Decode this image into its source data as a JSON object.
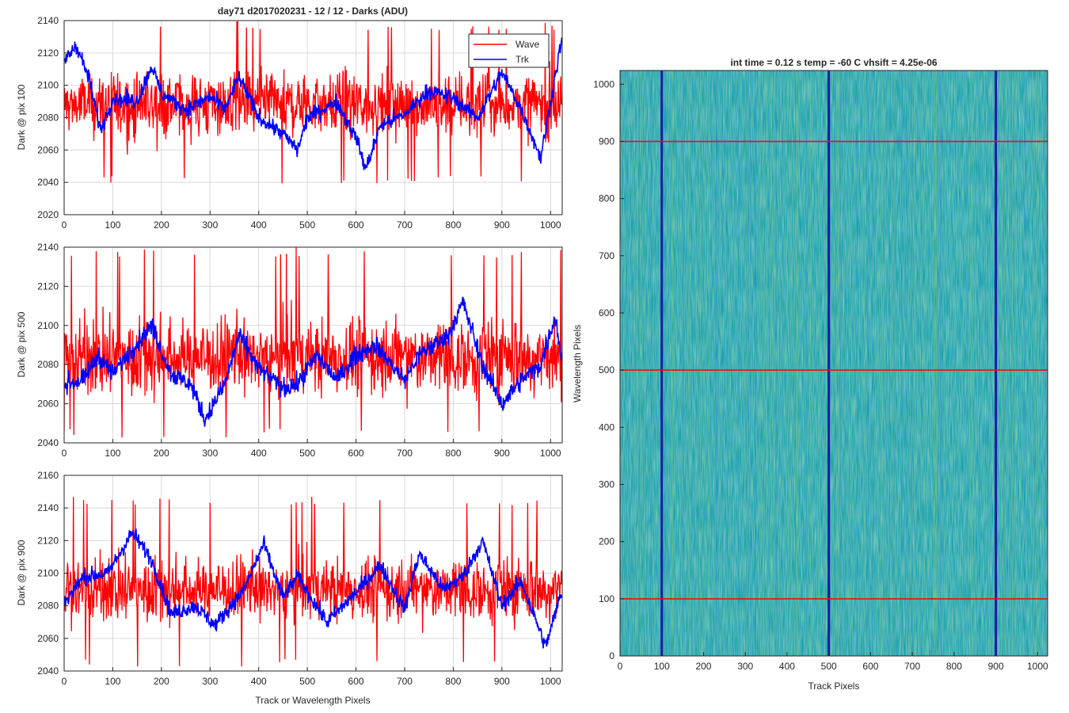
{
  "figure": {
    "title": "day71 d2017020231 - 12 / 12 - Darks (ADU)"
  },
  "colors": {
    "wave": "#ff0000",
    "trk": "#0000ff",
    "grid": "#d9d9d9",
    "axis": "#262626",
    "heatmap_base": "#1aa3a8",
    "heatmap_low": "#1f6fd6",
    "heatmap_high": "#8ecf55",
    "dark_column": "#1a1aa6"
  },
  "chart_data": [
    {
      "type": "line",
      "ylabel": "Dark @ pix 100",
      "xlabel": "",
      "xlim": [
        0,
        1024
      ],
      "ylim": [
        2020,
        2140
      ],
      "xticks": [
        0,
        100,
        200,
        300,
        400,
        500,
        600,
        700,
        800,
        900,
        1000
      ],
      "yticks": [
        2020,
        2040,
        2060,
        2080,
        2100,
        2120,
        2140
      ],
      "grid": true,
      "legend": {
        "position": "top-right",
        "entries": [
          "Wave",
          "Trk"
        ]
      },
      "series": [
        {
          "name": "Wave",
          "color": "#ff0000",
          "n_points": 1024,
          "mean": 2088,
          "spread": 14,
          "min": 2038,
          "max": 2140
        },
        {
          "name": "Trk",
          "color": "#0000ff",
          "n_points": 1024,
          "mean": 2090,
          "spread": 12,
          "anchors": [
            [
              0,
              2115
            ],
            [
              25,
              2125
            ],
            [
              50,
              2105
            ],
            [
              75,
              2072
            ],
            [
              100,
              2092
            ],
            [
              150,
              2090
            ],
            [
              180,
              2112
            ],
            [
              200,
              2095
            ],
            [
              250,
              2085
            ],
            [
              300,
              2093
            ],
            [
              330,
              2085
            ],
            [
              360,
              2105
            ],
            [
              400,
              2080
            ],
            [
              450,
              2070
            ],
            [
              480,
              2060
            ],
            [
              500,
              2080
            ],
            [
              560,
              2090
            ],
            [
              600,
              2068
            ],
            [
              620,
              2048
            ],
            [
              650,
              2075
            ],
            [
              700,
              2082
            ],
            [
              750,
              2097
            ],
            [
              800,
              2092
            ],
            [
              850,
              2080
            ],
            [
              900,
              2108
            ],
            [
              940,
              2085
            ],
            [
              980,
              2055
            ],
            [
              1000,
              2090
            ],
            [
              1024,
              2130
            ]
          ]
        }
      ]
    },
    {
      "type": "line",
      "ylabel": "Dark @ pix 500",
      "xlabel": "",
      "xlim": [
        0,
        1024
      ],
      "ylim": [
        2040,
        2140
      ],
      "xticks": [
        0,
        100,
        200,
        300,
        400,
        500,
        600,
        700,
        800,
        900,
        1000
      ],
      "yticks": [
        2040,
        2060,
        2080,
        2100,
        2120,
        2140
      ],
      "grid": true,
      "series": [
        {
          "name": "Wave",
          "color": "#ff0000",
          "n_points": 1024,
          "mean": 2084,
          "spread": 14,
          "min": 2042,
          "max": 2140
        },
        {
          "name": "Trk",
          "color": "#0000ff",
          "n_points": 1024,
          "mean": 2082,
          "spread": 10,
          "anchors": [
            [
              0,
              2070
            ],
            [
              40,
              2072
            ],
            [
              70,
              2085
            ],
            [
              100,
              2075
            ],
            [
              130,
              2085
            ],
            [
              180,
              2100
            ],
            [
              220,
              2075
            ],
            [
              260,
              2070
            ],
            [
              290,
              2052
            ],
            [
              330,
              2070
            ],
            [
              360,
              2095
            ],
            [
              400,
              2078
            ],
            [
              450,
              2068
            ],
            [
              480,
              2070
            ],
            [
              520,
              2085
            ],
            [
              560,
              2072
            ],
            [
              600,
              2085
            ],
            [
              640,
              2090
            ],
            [
              700,
              2072
            ],
            [
              730,
              2085
            ],
            [
              790,
              2095
            ],
            [
              820,
              2112
            ],
            [
              860,
              2080
            ],
            [
              900,
              2060
            ],
            [
              940,
              2072
            ],
            [
              980,
              2080
            ],
            [
              1010,
              2105
            ],
            [
              1024,
              2080
            ]
          ]
        }
      ]
    },
    {
      "type": "line",
      "ylabel": "Dark @ pix 900",
      "xlabel": "Track or Wavelength Pixels",
      "xlim": [
        0,
        1024
      ],
      "ylim": [
        2040,
        2160
      ],
      "xticks": [
        0,
        100,
        200,
        300,
        400,
        500,
        600,
        700,
        800,
        900,
        1000
      ],
      "yticks": [
        2040,
        2060,
        2080,
        2100,
        2120,
        2140,
        2160
      ],
      "grid": true,
      "series": [
        {
          "name": "Wave",
          "color": "#ff0000",
          "n_points": 1024,
          "mean": 2090,
          "spread": 14,
          "min": 2042,
          "max": 2147
        },
        {
          "name": "Trk",
          "color": "#0000ff",
          "n_points": 1024,
          "mean": 2092,
          "spread": 10,
          "anchors": [
            [
              0,
              2082
            ],
            [
              40,
              2098
            ],
            [
              90,
              2100
            ],
            [
              140,
              2125
            ],
            [
              180,
              2108
            ],
            [
              220,
              2075
            ],
            [
              270,
              2080
            ],
            [
              310,
              2068
            ],
            [
              370,
              2090
            ],
            [
              410,
              2118
            ],
            [
              450,
              2085
            ],
            [
              480,
              2098
            ],
            [
              540,
              2070
            ],
            [
              600,
              2088
            ],
            [
              650,
              2105
            ],
            [
              700,
              2078
            ],
            [
              730,
              2112
            ],
            [
              780,
              2090
            ],
            [
              820,
              2098
            ],
            [
              860,
              2120
            ],
            [
              900,
              2080
            ],
            [
              940,
              2095
            ],
            [
              990,
              2055
            ],
            [
              1024,
              2090
            ]
          ]
        }
      ]
    },
    {
      "type": "heatmap",
      "title": "int time = 0.12 s    temp = -60 C    vhsift = 4.25e-06",
      "xlabel": "Track Pixels",
      "ylabel": "Wavelength Pixels",
      "xlim": [
        0,
        1024
      ],
      "ylim": [
        0,
        1024
      ],
      "xticks": [
        0,
        100,
        200,
        300,
        400,
        500,
        600,
        700,
        800,
        900,
        1000
      ],
      "yticks": [
        0,
        100,
        200,
        300,
        400,
        500,
        600,
        700,
        800,
        900,
        1000
      ],
      "dark_columns": [
        100,
        500,
        900
      ],
      "horizontal_lines": [
        100,
        500,
        900
      ]
    }
  ]
}
